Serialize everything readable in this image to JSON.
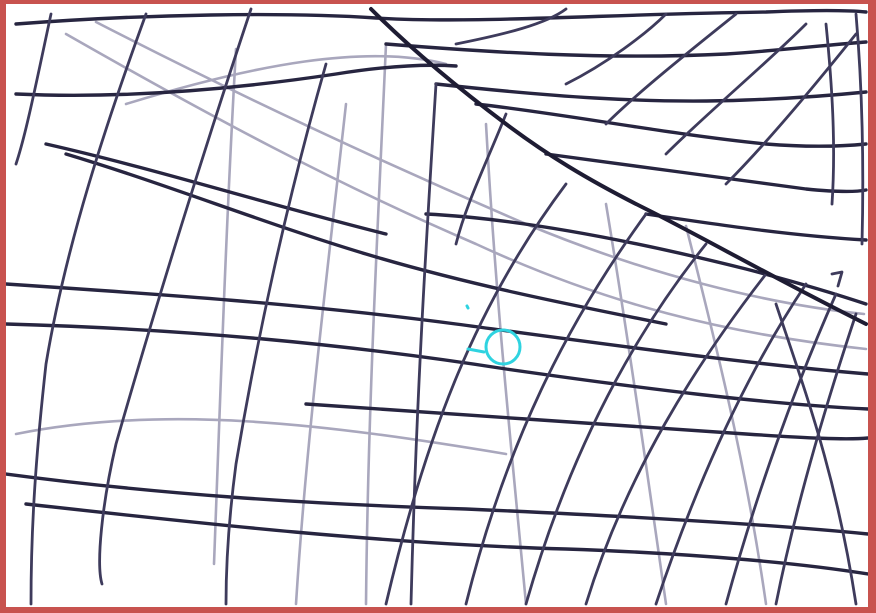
{
  "drawing": {
    "ink_color": "#272540",
    "faint_ink_color": "#a9a7bd",
    "marker_color": "#2fd3e0",
    "border_color": "#c8534f"
  }
}
